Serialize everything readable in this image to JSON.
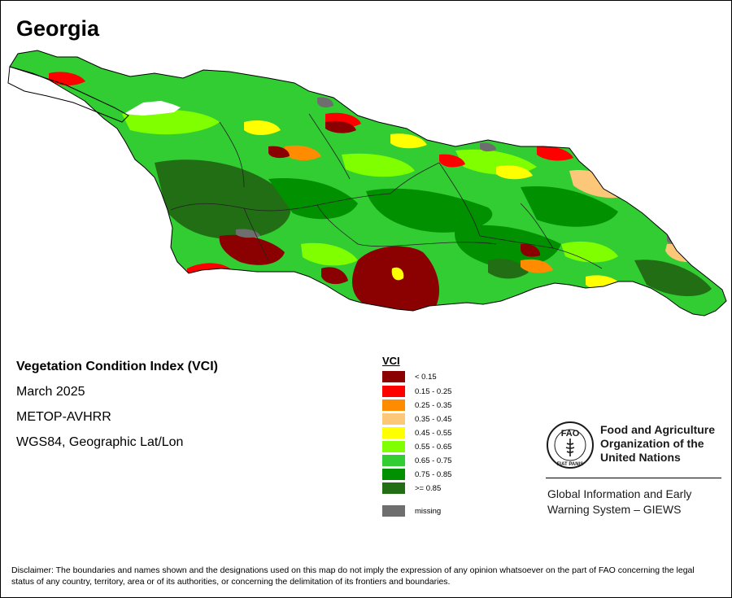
{
  "title": "Georgia",
  "map_info": {
    "index_name": "Vegetation Condition Index (VCI)",
    "period": "March 2025",
    "sensor": "METOP-AVHRR",
    "projection": "WGS84, Geographic Lat/Lon"
  },
  "legend": {
    "title": "VCI",
    "items": [
      {
        "label": "< 0.15",
        "color": "#8b0000"
      },
      {
        "label": "0.15 - 0.25",
        "color": "#ff0000"
      },
      {
        "label": "0.25 - 0.35",
        "color": "#ff8c00"
      },
      {
        "label": "0.35 - 0.45",
        "color": "#fdc77a"
      },
      {
        "label": "0.45 - 0.55",
        "color": "#ffff00"
      },
      {
        "label": "0.55 - 0.65",
        "color": "#7fff00"
      },
      {
        "label": "0.65 - 0.75",
        "color": "#32cd32"
      },
      {
        "label": "0.75 - 0.85",
        "color": "#009000"
      },
      {
        "label": ">= 0.85",
        "color": "#226e14"
      }
    ],
    "missing": {
      "label": "missing",
      "color": "#6e6e6e"
    }
  },
  "organization": {
    "logo_text": "FAO",
    "logo_motto": "FIAT PANIS",
    "name": "Food and Agriculture Organization of the United Nations",
    "name_lines": [
      "Food and Agriculture",
      "Organization of the",
      "United Nations"
    ],
    "system_lines": [
      "Global Information and Early",
      "Warning System – GIEWS"
    ]
  },
  "disclaimer": "Disclaimer: The boundaries and names shown and the designations used on this map do not imply the expression of any opinion whatsoever on the part of FAO concerning the legal status of any country, territory, area or of its authorities, or concerning the delimitation of its frontiers and boundaries."
}
